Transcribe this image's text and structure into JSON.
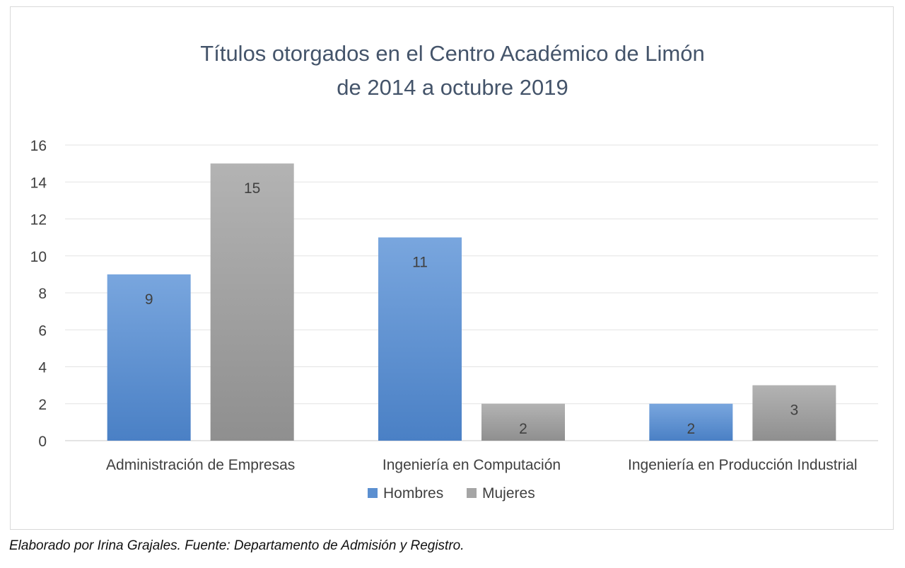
{
  "chart_data": {
    "type": "bar",
    "title_line1": "Títulos otorgados en el Centro Académico de Limón",
    "title_line2": "de 2014 a octubre 2019",
    "categories": [
      "Administración de Empresas",
      "Ingeniería en Computación",
      "Ingeniería en Producción Industrial"
    ],
    "series": [
      {
        "name": "Hombres",
        "values": [
          9,
          11,
          2
        ],
        "color": "#5b8fd0"
      },
      {
        "name": "Mujeres",
        "values": [
          15,
          2,
          3
        ],
        "color": "#a5a5a5"
      }
    ],
    "ylim": [
      0,
      16
    ],
    "yticks": [
      0,
      2,
      4,
      6,
      8,
      10,
      12,
      14,
      16
    ],
    "grid": true,
    "legend_position": "bottom",
    "data_labels": true
  },
  "footer_note": "Elaborado por Irina Grajales. Fuente: Departamento de Admisión y Registro."
}
